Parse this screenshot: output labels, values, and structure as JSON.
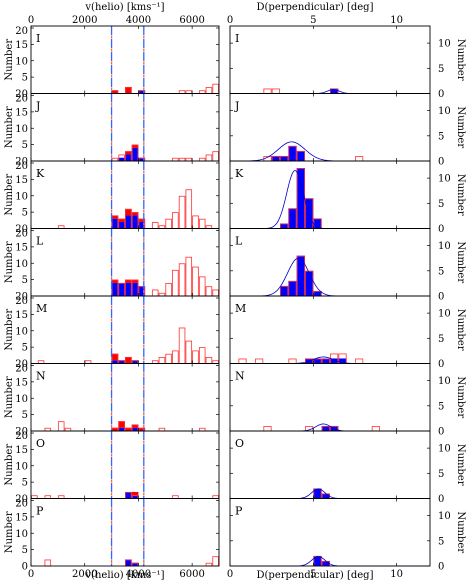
{
  "chart_data": {
    "type": "bar",
    "left": {
      "xlabel": "v(helio) [kms⁻¹]",
      "ylabel": "Number",
      "xlim": [
        0,
        7000
      ],
      "ylim": [
        0,
        20
      ],
      "xticks": [
        "0",
        "2000",
        "4000",
        "6000"
      ],
      "yticks": [
        "0",
        "5",
        "10",
        "15",
        "20"
      ],
      "bin_start": 0,
      "bin_width": 250,
      "vlines": [
        3000,
        4200
      ]
    },
    "right": {
      "xlabel": "D(perpendicular) [deg]",
      "ylabel": "Number",
      "xlim": [
        0,
        12
      ],
      "ylim": [
        0,
        13
      ],
      "xticks": [
        "0",
        "5",
        "10"
      ],
      "yticks": [
        "0",
        "5",
        "10"
      ],
      "bin_start": 0,
      "bin_width": 0.5
    },
    "panels": [
      {
        "label": "I",
        "left_all": [
          0,
          0,
          0,
          0,
          0,
          0,
          0,
          0,
          0,
          0,
          0,
          0,
          1,
          0,
          2,
          0,
          1,
          0,
          0,
          0,
          0,
          0,
          1,
          1,
          0,
          1,
          2,
          3
        ],
        "left_members": [
          0,
          0,
          0,
          0,
          0,
          0,
          0,
          0,
          0,
          0,
          0,
          0,
          0,
          0,
          0,
          0,
          1,
          0,
          0,
          0,
          0,
          0,
          0,
          0,
          0,
          0,
          0,
          0
        ],
        "left_red": [
          0,
          0,
          0,
          0,
          0,
          0,
          0,
          0,
          0,
          0,
          0,
          0,
          1,
          0,
          2,
          0,
          0,
          0,
          0,
          0,
          0,
          0,
          0,
          0,
          0,
          0,
          0,
          0
        ],
        "right_all": [
          0,
          0,
          0,
          0,
          1,
          1,
          0,
          0,
          0,
          0,
          0,
          0,
          1,
          0,
          0,
          0,
          0,
          0,
          0,
          0,
          0,
          0,
          0,
          0
        ],
        "right_members": [
          0,
          0,
          0,
          0,
          0,
          0,
          0,
          0,
          0,
          0,
          0,
          0,
          1,
          0,
          0,
          0,
          0,
          0,
          0,
          0,
          0,
          0,
          0,
          0
        ],
        "gauss": {
          "mu": 6.2,
          "sigma": 0.35,
          "amp": 0.8
        }
      },
      {
        "label": "J",
        "left_all": [
          0,
          0,
          0,
          0,
          0,
          0,
          0,
          0,
          0,
          0,
          0,
          0,
          1,
          2,
          3,
          5,
          1,
          0,
          0,
          0,
          0,
          1,
          1,
          1,
          0,
          1,
          2,
          3
        ],
        "left_members": [
          0,
          0,
          0,
          0,
          0,
          0,
          0,
          0,
          0,
          0,
          0,
          0,
          0,
          1,
          2,
          4,
          1,
          0,
          0,
          0,
          0,
          0,
          0,
          0,
          0,
          0,
          0,
          0
        ],
        "left_red": [
          0,
          0,
          0,
          0,
          0,
          0,
          0,
          0,
          0,
          0,
          0,
          0,
          0,
          0,
          1,
          1,
          0,
          0,
          0,
          0,
          0,
          0,
          0,
          0,
          0,
          0,
          0,
          0
        ],
        "right_all": [
          0,
          0,
          0,
          0,
          1,
          1,
          1,
          3,
          2,
          0,
          0,
          0,
          0,
          0,
          0,
          1,
          0,
          0,
          0,
          0,
          0,
          0,
          0,
          0
        ],
        "right_members": [
          0,
          0,
          0,
          0,
          0,
          1,
          1,
          3,
          2,
          0,
          0,
          0,
          0,
          0,
          0,
          0,
          0,
          0,
          0,
          0,
          0,
          0,
          0,
          0
        ],
        "gauss": {
          "mu": 3.7,
          "sigma": 0.8,
          "amp": 3.8
        }
      },
      {
        "label": "K",
        "left_all": [
          0,
          0,
          0,
          0,
          1,
          0,
          0,
          0,
          0,
          0,
          0,
          0,
          4,
          3,
          6,
          5,
          3,
          0,
          2,
          1,
          3,
          5,
          10,
          12,
          4,
          3,
          1,
          0
        ],
        "left_members": [
          0,
          0,
          0,
          0,
          0,
          0,
          0,
          0,
          0,
          0,
          0,
          0,
          3,
          2,
          4,
          4,
          2,
          0,
          0,
          0,
          0,
          0,
          0,
          0,
          0,
          0,
          0,
          0
        ],
        "left_red": [
          0,
          0,
          0,
          0,
          0,
          0,
          0,
          0,
          0,
          0,
          0,
          0,
          1,
          1,
          2,
          1,
          1,
          0,
          0,
          0,
          0,
          0,
          0,
          0,
          0,
          0,
          0,
          0
        ],
        "right_all": [
          0,
          0,
          0,
          0,
          0,
          0,
          1,
          4,
          12,
          6,
          2,
          0,
          0,
          0,
          0,
          0,
          0,
          0,
          0,
          0,
          0,
          0,
          0,
          0
        ],
        "right_members": [
          0,
          0,
          0,
          0,
          0,
          0,
          1,
          4,
          12,
          6,
          2,
          0,
          0,
          0,
          0,
          0,
          0,
          0,
          0,
          0,
          0,
          0,
          0,
          0
        ],
        "gauss": {
          "mu": 3.9,
          "sigma": 0.5,
          "amp": 11.5
        }
      },
      {
        "label": "L",
        "left_all": [
          0,
          0,
          0,
          0,
          0,
          0,
          0,
          0,
          0,
          0,
          0,
          0,
          5,
          4,
          5,
          5,
          3,
          0,
          2,
          1,
          4,
          8,
          10,
          12,
          9,
          6,
          3,
          2
        ],
        "left_members": [
          0,
          0,
          0,
          0,
          0,
          0,
          0,
          0,
          0,
          0,
          0,
          0,
          4,
          4,
          4,
          4,
          3,
          0,
          0,
          0,
          0,
          0,
          0,
          0,
          0,
          0,
          0,
          0
        ],
        "left_red": [
          0,
          0,
          0,
          0,
          0,
          0,
          0,
          0,
          0,
          0,
          0,
          0,
          1,
          0,
          1,
          1,
          0,
          0,
          0,
          0,
          0,
          0,
          0,
          0,
          0,
          0,
          0,
          0
        ],
        "right_all": [
          0,
          0,
          0,
          0,
          0,
          0,
          2,
          3,
          8,
          5,
          1,
          0,
          0,
          0,
          0,
          0,
          0,
          0,
          0,
          0,
          0,
          0,
          0,
          0
        ],
        "right_members": [
          0,
          0,
          0,
          0,
          0,
          0,
          2,
          3,
          8,
          5,
          1,
          0,
          0,
          0,
          0,
          0,
          0,
          0,
          0,
          0,
          0,
          0,
          0,
          0
        ],
        "gauss": {
          "mu": 4.1,
          "sigma": 0.65,
          "amp": 7.5
        }
      },
      {
        "label": "M",
        "left_all": [
          0,
          1,
          0,
          0,
          0,
          0,
          0,
          0,
          1,
          0,
          0,
          0,
          3,
          1,
          2,
          1,
          0,
          0,
          1,
          2,
          3,
          4,
          11,
          7,
          4,
          5,
          2,
          1
        ],
        "left_members": [
          0,
          0,
          0,
          0,
          0,
          0,
          0,
          0,
          0,
          0,
          0,
          0,
          1,
          1,
          0,
          1,
          0,
          0,
          0,
          0,
          0,
          0,
          0,
          0,
          0,
          0,
          0,
          0
        ],
        "left_red": [
          0,
          0,
          0,
          0,
          0,
          0,
          0,
          0,
          0,
          0,
          0,
          0,
          2,
          0,
          2,
          0,
          0,
          0,
          0,
          0,
          0,
          0,
          0,
          0,
          0,
          0,
          0,
          0
        ],
        "right_all": [
          0,
          1,
          0,
          1,
          0,
          0,
          0,
          1,
          0,
          1,
          1,
          1,
          2,
          2,
          0,
          1,
          0,
          0,
          0,
          0,
          0,
          0,
          0,
          0
        ],
        "right_members": [
          0,
          0,
          0,
          0,
          0,
          0,
          0,
          0,
          0,
          1,
          1,
          1,
          1,
          1,
          0,
          0,
          0,
          0,
          0,
          0,
          0,
          0,
          0,
          0
        ],
        "gauss": {
          "mu": 5.6,
          "sigma": 0.6,
          "amp": 1.3
        }
      },
      {
        "label": "N",
        "left_all": [
          0,
          0,
          1,
          0,
          3,
          1,
          0,
          0,
          0,
          0,
          0,
          0,
          1,
          3,
          1,
          2,
          1,
          0,
          0,
          1,
          0,
          0,
          0,
          0,
          0,
          1,
          0,
          0
        ],
        "left_members": [
          0,
          0,
          0,
          0,
          0,
          0,
          0,
          0,
          0,
          0,
          0,
          0,
          0,
          1,
          0,
          1,
          0,
          0,
          0,
          0,
          0,
          0,
          0,
          0,
          0,
          0,
          0,
          0
        ],
        "left_red": [
          0,
          0,
          0,
          0,
          0,
          0,
          0,
          0,
          0,
          0,
          0,
          0,
          1,
          2,
          1,
          1,
          1,
          0,
          0,
          0,
          0,
          0,
          0,
          0,
          0,
          0,
          0,
          0
        ],
        "right_all": [
          0,
          0,
          0,
          0,
          1,
          0,
          0,
          0,
          0,
          1,
          0,
          1,
          1,
          0,
          0,
          0,
          0,
          1,
          0,
          0,
          0,
          0,
          0,
          0
        ],
        "right_members": [
          0,
          0,
          0,
          0,
          0,
          0,
          0,
          0,
          0,
          0,
          0,
          1,
          1,
          0,
          0,
          0,
          0,
          0,
          0,
          0,
          0,
          0,
          0,
          0
        ],
        "gauss": {
          "mu": 5.6,
          "sigma": 0.45,
          "amp": 1.4
        }
      },
      {
        "label": "O",
        "left_all": [
          1,
          0,
          1,
          0,
          1,
          0,
          0,
          0,
          0,
          0,
          0,
          0,
          0,
          0,
          2,
          1,
          0,
          0,
          0,
          0,
          0,
          1,
          0,
          0,
          0,
          0,
          0,
          1
        ],
        "left_members": [
          0,
          0,
          0,
          0,
          0,
          0,
          0,
          0,
          0,
          0,
          0,
          0,
          0,
          0,
          2,
          1,
          0,
          0,
          0,
          0,
          0,
          0,
          0,
          0,
          0,
          0,
          0,
          0
        ],
        "left_red": [
          0,
          0,
          0,
          0,
          0,
          0,
          0,
          0,
          0,
          0,
          0,
          0,
          0,
          0,
          0,
          1,
          0,
          0,
          0,
          0,
          0,
          0,
          0,
          0,
          0,
          0,
          0,
          0
        ],
        "right_all": [
          0,
          0,
          0,
          0,
          0,
          0,
          0,
          0,
          0,
          0,
          2,
          1,
          0,
          0,
          0,
          0,
          0,
          0,
          0,
          0,
          0,
          0,
          0,
          0
        ],
        "right_members": [
          0,
          0,
          0,
          0,
          0,
          0,
          0,
          0,
          0,
          0,
          2,
          1,
          0,
          0,
          0,
          0,
          0,
          0,
          0,
          0,
          0,
          0,
          0,
          0
        ],
        "gauss": {
          "mu": 5.3,
          "sigma": 0.4,
          "amp": 1.9
        }
      },
      {
        "label": "P",
        "left_all": [
          0,
          0,
          2,
          0,
          0,
          0,
          0,
          0,
          0,
          0,
          0,
          0,
          0,
          0,
          2,
          1,
          0,
          0,
          0,
          0,
          0,
          0,
          0,
          0,
          0,
          0,
          1,
          3
        ],
        "left_members": [
          0,
          0,
          0,
          0,
          0,
          0,
          0,
          0,
          0,
          0,
          0,
          0,
          0,
          0,
          2,
          1,
          0,
          0,
          0,
          0,
          0,
          0,
          0,
          0,
          0,
          0,
          0,
          0
        ],
        "left_red": [
          0,
          0,
          0,
          0,
          0,
          0,
          0,
          0,
          0,
          0,
          0,
          0,
          0,
          0,
          0,
          0,
          0,
          0,
          0,
          0,
          0,
          0,
          0,
          0,
          0,
          0,
          0,
          0
        ],
        "right_all": [
          0,
          0,
          0,
          0,
          0,
          0,
          0,
          0,
          0,
          0,
          2,
          1,
          0,
          0,
          0,
          0,
          0,
          0,
          0,
          0,
          0,
          0,
          0,
          0
        ],
        "right_members": [
          0,
          0,
          0,
          0,
          0,
          0,
          0,
          0,
          0,
          0,
          2,
          1,
          0,
          0,
          0,
          0,
          0,
          0,
          0,
          0,
          0,
          0,
          0,
          0
        ],
        "gauss": {
          "mu": 5.3,
          "sigma": 0.4,
          "amp": 1.9
        }
      }
    ]
  },
  "colors": {
    "open_bar": "#ff3333",
    "member_bar": "#0000ff",
    "red_bar": "#ff0000",
    "gauss_line": "#0000cc",
    "vline": "#3366ff",
    "vline_dash": "#ff6633"
  }
}
